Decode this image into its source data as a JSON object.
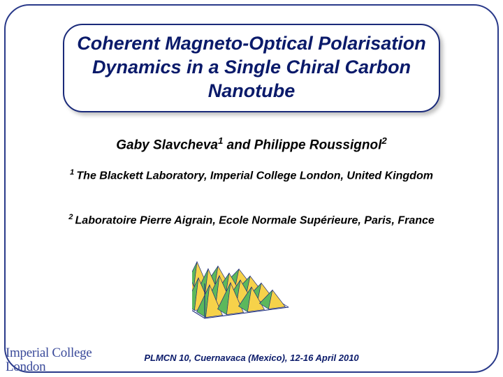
{
  "title": "Coherent Magneto-Optical Polarisation Dynamics in a Single Chiral Carbon Nanotube",
  "authors": {
    "a1_name": "Gaby Slavcheva",
    "a1_sup": "1",
    "join": " and ",
    "a2_name": "Philippe Roussignol",
    "a2_sup": "2"
  },
  "affil1": {
    "sup": "1 ",
    "text": "The Blackett Laboratory, Imperial College London, United Kingdom"
  },
  "affil2": {
    "sup": "2 ",
    "text": "Laboratoire Pierre Aigrain, Ecole Normale Supérieure, Paris, France"
  },
  "logo": {
    "line1": "Imperial College",
    "line2": "London"
  },
  "footer": "PLMCN 10, Cuernavaca (Mexico), 12-16 April 2010",
  "plot": {
    "type": "3d-surface",
    "view": "isometric",
    "rows": 4,
    "cols": 4,
    "peak_height": 42,
    "base_width": 150,
    "base_depth": 70,
    "top_color": "#f6d24a",
    "mid_color": "#5cb85c",
    "low_color": "#3a6fd8",
    "edge_color": "#1a2a7a",
    "background": "#ffffff"
  },
  "colors": {
    "frame_border": "#2a3a8a",
    "title_text": "#0a1a6a",
    "body_text": "#000000",
    "logo_text": "#3a4a9a",
    "footer_text": "#0a1a6a"
  }
}
